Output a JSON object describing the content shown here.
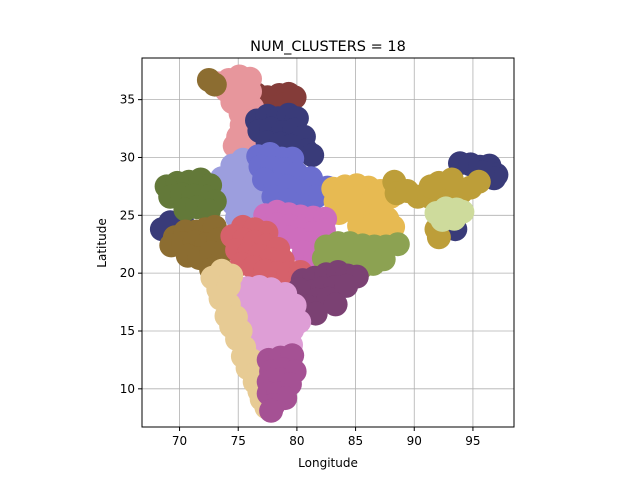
{
  "chart_data": {
    "type": "scatter",
    "title": "NUM_CLUSTERS = 18",
    "xlabel": "Longitude",
    "ylabel": "Latitude",
    "xlim": [
      66.8,
      98.5
    ],
    "ylim": [
      6.7,
      38.6
    ],
    "x_ticks": [
      "70",
      "75",
      "80",
      "85",
      "90",
      "95"
    ],
    "y_ticks": [
      "10",
      "15",
      "20",
      "25",
      "30",
      "35"
    ],
    "grid": true,
    "legend": "none",
    "series": [
      {
        "color": "#843c39",
        "points": [
          [
            76.5,
            35.5
          ],
          [
            77.5,
            35.2
          ],
          [
            78.5,
            35.4
          ],
          [
            79.3,
            35.5
          ],
          [
            77,
            34.5
          ],
          [
            78,
            34.3
          ],
          [
            79,
            34.6
          ],
          [
            79.8,
            35.2
          ]
        ]
      },
      {
        "color": "#e7969c",
        "points": [
          [
            73.3,
            36.4
          ],
          [
            74.2,
            36.7
          ],
          [
            75.1,
            37
          ],
          [
            76,
            36.8
          ],
          [
            74,
            35.8
          ],
          [
            75,
            35.9
          ],
          [
            76,
            35.7
          ],
          [
            74.5,
            34.8
          ],
          [
            75.4,
            34.9
          ],
          [
            76.2,
            34.3
          ],
          [
            75.2,
            33.8
          ],
          [
            76.1,
            33.2
          ],
          [
            75.3,
            32.8
          ],
          [
            75,
            31.8
          ],
          [
            76,
            31.5
          ],
          [
            74.7,
            31
          ]
        ]
      },
      {
        "color": "#8c6d31",
        "points": [
          [
            72.5,
            36.7
          ],
          [
            73,
            36.3
          ]
        ]
      },
      {
        "color": "#393b79",
        "points": [
          [
            76.6,
            33.2
          ],
          [
            77.5,
            33.6
          ],
          [
            78.4,
            33.4
          ],
          [
            79.3,
            33.7
          ],
          [
            80,
            33.4
          ],
          [
            76.8,
            32.3
          ],
          [
            77.8,
            32.5
          ],
          [
            78.8,
            32.2
          ],
          [
            79.8,
            32.4
          ],
          [
            80.6,
            31.8
          ],
          [
            77.5,
            31.3
          ],
          [
            78.6,
            31.2
          ],
          [
            79.5,
            31
          ],
          [
            80.8,
            30.6
          ],
          [
            81.3,
            30.2
          ],
          [
            93.9,
            29.5
          ],
          [
            94.8,
            29.4
          ],
          [
            95.6,
            29.2
          ],
          [
            96.4,
            29.3
          ],
          [
            97,
            28.5
          ],
          [
            96.8,
            28.2
          ],
          [
            95.8,
            28.7
          ],
          [
            93.5,
            23.8
          ],
          [
            93.2,
            24.6
          ],
          [
            68.5,
            23.8
          ],
          [
            69.2,
            24.4
          ],
          [
            70.2,
            24.5
          ]
        ]
      },
      {
        "color": "#9c9ede",
        "points": [
          [
            74.5,
            29.3
          ],
          [
            75.4,
            29.8
          ],
          [
            76.2,
            28.9
          ],
          [
            73.6,
            28.2
          ],
          [
            74.5,
            28.3
          ],
          [
            75.5,
            28.1
          ],
          [
            76.4,
            27.7
          ],
          [
            73.2,
            27.2
          ],
          [
            74.2,
            26.9
          ],
          [
            75.2,
            27
          ],
          [
            76.2,
            26.5
          ],
          [
            74.6,
            26
          ],
          [
            75.5,
            25.5
          ],
          [
            74.9,
            24.8
          ]
        ]
      },
      {
        "color": "#637939",
        "points": [
          [
            68.9,
            27.5
          ],
          [
            69.8,
            27.8
          ],
          [
            70.8,
            27.9
          ],
          [
            71.8,
            28.1
          ],
          [
            72.6,
            27.6
          ],
          [
            69.2,
            26.6
          ],
          [
            70.2,
            26.8
          ],
          [
            71.2,
            26.7
          ],
          [
            72.3,
            26.6
          ],
          [
            73,
            26.2
          ],
          [
            70.5,
            25.5
          ],
          [
            71.5,
            25.7
          ],
          [
            72.5,
            25.4
          ]
        ]
      },
      {
        "color": "#6b6ecf",
        "points": [
          [
            76.7,
            30.1
          ],
          [
            77.7,
            30.3
          ],
          [
            78.7,
            29.9
          ],
          [
            79.6,
            29.9
          ],
          [
            76.9,
            29.2
          ],
          [
            77.9,
            29.1
          ],
          [
            78.9,
            29
          ],
          [
            80,
            28.6
          ],
          [
            81.2,
            28.2
          ],
          [
            82.6,
            27.4
          ],
          [
            77.2,
            28.1
          ],
          [
            78.2,
            27.7
          ],
          [
            79.2,
            27.5
          ],
          [
            80.4,
            27.1
          ],
          [
            81.6,
            26.6
          ],
          [
            78,
            26.6
          ],
          [
            79.2,
            26.3
          ],
          [
            80.5,
            25.8
          ]
        ]
      },
      {
        "color": "#e7ba52",
        "points": [
          [
            83.1,
            27.3
          ],
          [
            84.1,
            27.5
          ],
          [
            85.1,
            27.6
          ],
          [
            86.1,
            27.4
          ],
          [
            87.1,
            27.1
          ],
          [
            83.3,
            26.2
          ],
          [
            84.3,
            26.4
          ],
          [
            85.3,
            26.6
          ],
          [
            86.4,
            26.2
          ],
          [
            87.4,
            26.2
          ],
          [
            88,
            26.6
          ],
          [
            83.6,
            25.2
          ],
          [
            84.7,
            25.4
          ],
          [
            85.8,
            25.2
          ],
          [
            86.8,
            25
          ],
          [
            87.7,
            24.7
          ],
          [
            88.2,
            24
          ],
          [
            85.3,
            24.1
          ],
          [
            86.5,
            24.2
          ],
          [
            87.5,
            23.7
          ]
        ]
      },
      {
        "color": "#bd9e39",
        "points": [
          [
            88.3,
            27.9
          ],
          [
            88.5,
            26.9
          ],
          [
            89.4,
            27.1
          ],
          [
            90.3,
            26.6
          ],
          [
            91.3,
            26.6
          ],
          [
            92.2,
            26.5
          ],
          [
            93.1,
            26.8
          ],
          [
            94,
            27
          ],
          [
            94.8,
            27.4
          ],
          [
            95.5,
            27.9
          ],
          [
            92.1,
            27.8
          ],
          [
            91.4,
            27.5
          ],
          [
            93.2,
            28.1
          ],
          [
            91.9,
            23.8
          ],
          [
            92.1,
            23.1
          ]
        ]
      },
      {
        "color": "#cedb9c",
        "points": [
          [
            91.9,
            25.2
          ],
          [
            92.7,
            25.6
          ],
          [
            93.6,
            25.5
          ],
          [
            92.4,
            24.6
          ],
          [
            93.4,
            24.7
          ],
          [
            94.1,
            25.3
          ]
        ]
      },
      {
        "color": "#ce6dbd",
        "points": [
          [
            77.3,
            25
          ],
          [
            78.3,
            25.3
          ],
          [
            79.3,
            25.1
          ],
          [
            80.3,
            24.9
          ],
          [
            81.4,
            24.8
          ],
          [
            82.4,
            24.7
          ],
          [
            78.3,
            24.2
          ],
          [
            79.4,
            24.1
          ],
          [
            80.4,
            23.8
          ],
          [
            81.4,
            23.5
          ],
          [
            82.3,
            23.7
          ],
          [
            79.2,
            23.1
          ],
          [
            80.2,
            22.9
          ],
          [
            81.2,
            22.6
          ],
          [
            82.1,
            22.3
          ],
          [
            80.6,
            21.8
          ],
          [
            81.6,
            21.4
          ]
        ]
      },
      {
        "color": "#8c6d31",
        "points": [
          [
            69.6,
            23.1
          ],
          [
            70.5,
            23.6
          ],
          [
            71.4,
            23.6
          ],
          [
            72.2,
            23.8
          ],
          [
            73,
            24
          ],
          [
            69.3,
            22.4
          ],
          [
            70.3,
            22.6
          ],
          [
            71.3,
            22.7
          ],
          [
            72.3,
            22.5
          ],
          [
            73.3,
            22.9
          ],
          [
            70.7,
            21.5
          ],
          [
            71.7,
            21.3
          ],
          [
            72.7,
            21.8
          ],
          [
            73.3,
            20.8
          ],
          [
            72.7,
            20.3
          ],
          [
            74,
            22.1
          ]
        ]
      },
      {
        "color": "#d6616b",
        "points": [
          [
            75.4,
            24
          ],
          [
            76.4,
            23.8
          ],
          [
            77.4,
            23.5
          ],
          [
            74.5,
            23.2
          ],
          [
            75.5,
            22.9
          ],
          [
            76.4,
            22.7
          ],
          [
            77.4,
            22.4
          ],
          [
            78.4,
            22.1
          ],
          [
            74.9,
            22
          ],
          [
            75.9,
            21.7
          ],
          [
            76.8,
            21.5
          ],
          [
            77.8,
            21.2
          ],
          [
            78.8,
            21.1
          ],
          [
            75.3,
            20.8
          ],
          [
            76.3,
            20.5
          ],
          [
            77.3,
            20.2
          ],
          [
            78.3,
            20
          ],
          [
            79.3,
            20
          ],
          [
            80.3,
            20.1
          ]
        ]
      },
      {
        "color": "#8ca252",
        "points": [
          [
            82.5,
            22.3
          ],
          [
            83.5,
            22.6
          ],
          [
            84.5,
            22.6
          ],
          [
            85.6,
            22.4
          ],
          [
            86.6,
            22.3
          ],
          [
            87.6,
            22.3
          ],
          [
            88.6,
            22.5
          ],
          [
            82.3,
            21.3
          ],
          [
            83.3,
            21.6
          ],
          [
            84.4,
            21.6
          ],
          [
            85.4,
            21.4
          ],
          [
            86.4,
            21.2
          ],
          [
            87.4,
            21.2
          ],
          [
            84.5,
            20.4
          ],
          [
            85.5,
            20.5
          ],
          [
            86.5,
            20.8
          ]
        ]
      },
      {
        "color": "#7b4173",
        "points": [
          [
            80.5,
            19.4
          ],
          [
            81.5,
            19.6
          ],
          [
            82.5,
            19.9
          ],
          [
            83.5,
            20.1
          ],
          [
            84.3,
            19.8
          ],
          [
            85.1,
            19.7
          ],
          [
            80.2,
            18.6
          ],
          [
            81.2,
            18.4
          ],
          [
            82.2,
            18.7
          ],
          [
            83.3,
            18.8
          ],
          [
            84.2,
            18.9
          ],
          [
            81.7,
            17.7
          ],
          [
            82.7,
            17.8
          ],
          [
            83.3,
            17.3
          ],
          [
            80.9,
            17.1
          ],
          [
            81.6,
            16.5
          ]
        ]
      },
      {
        "color": "#de9ed6",
        "points": [
          [
            74.8,
            18.6
          ],
          [
            75.8,
            18.7
          ],
          [
            76.8,
            18.8
          ],
          [
            77.8,
            18.6
          ],
          [
            79,
            18.2
          ],
          [
            74.8,
            17.6
          ],
          [
            75.8,
            17.5
          ],
          [
            76.8,
            17.3
          ],
          [
            77.8,
            17.5
          ],
          [
            78.7,
            17.4
          ],
          [
            79.8,
            17.2
          ],
          [
            75.4,
            16.4
          ],
          [
            76.5,
            16.6
          ],
          [
            77.5,
            16.4
          ],
          [
            78.4,
            16.5
          ],
          [
            79.5,
            16.2
          ],
          [
            80.2,
            15.8
          ],
          [
            76.5,
            15.4
          ],
          [
            77.5,
            15.3
          ],
          [
            78.5,
            15.4
          ],
          [
            79.6,
            15.1
          ],
          [
            76.9,
            14.3
          ],
          [
            77.9,
            14.2
          ],
          [
            78.9,
            14.4
          ],
          [
            79.5,
            13.8
          ],
          [
            77.3,
            13.3
          ],
          [
            78.3,
            13.3
          ]
        ]
      },
      {
        "color": "#e7cb94",
        "points": [
          [
            72.8,
            19.6
          ],
          [
            73.6,
            20.2
          ],
          [
            74.4,
            19.8
          ],
          [
            73.3,
            18.6
          ],
          [
            74.2,
            18.9
          ],
          [
            73.5,
            17.8
          ],
          [
            74.2,
            17.3
          ],
          [
            74,
            16.3
          ],
          [
            74.8,
            16.2
          ],
          [
            74.4,
            15.4
          ],
          [
            75.2,
            15
          ],
          [
            74.9,
            14.3
          ],
          [
            75.5,
            13.6
          ],
          [
            75.4,
            12.8
          ],
          [
            76.1,
            12.5
          ],
          [
            75.8,
            11.8
          ],
          [
            76.4,
            11.3
          ],
          [
            76.4,
            10.6
          ],
          [
            76.8,
            9.8
          ],
          [
            77,
            9.1
          ],
          [
            77.4,
            8.4
          ]
        ]
      },
      {
        "color": "#a55194",
        "points": [
          [
            77.6,
            12.5
          ],
          [
            78.6,
            12.7
          ],
          [
            79.6,
            12.9
          ],
          [
            77.8,
            11.5
          ],
          [
            78.8,
            11.7
          ],
          [
            79.8,
            11.5
          ],
          [
            77.6,
            10.6
          ],
          [
            78.6,
            10.8
          ],
          [
            79.4,
            10.4
          ],
          [
            77.6,
            9.6
          ],
          [
            78.4,
            9.6
          ],
          [
            79,
            9.2
          ],
          [
            78,
            8.6
          ],
          [
            77.8,
            8.1
          ]
        ]
      }
    ]
  }
}
